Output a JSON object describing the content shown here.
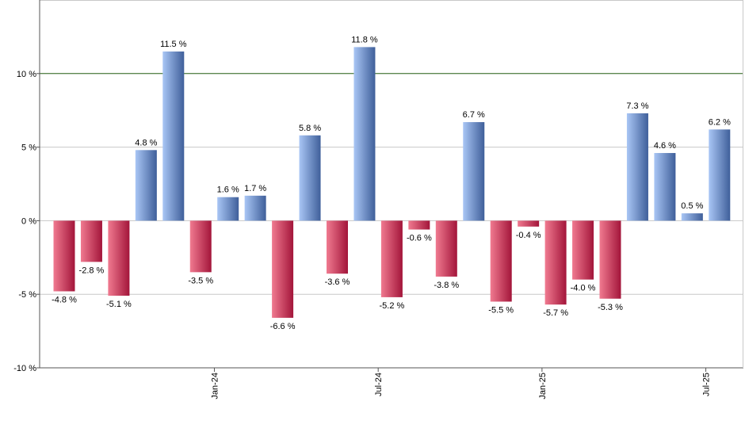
{
  "chart_data": {
    "type": "bar",
    "title": "",
    "xlabel": "",
    "ylabel": "",
    "ylim": [
      -10,
      15
    ],
    "unit_suffix": " %",
    "reference_line": 10,
    "grid": true,
    "y_ticks": [
      {
        "value": -10,
        "label": "-10 %"
      },
      {
        "value": -5,
        "label": "-5 %"
      },
      {
        "value": 0,
        "label": "0 %"
      },
      {
        "value": 5,
        "label": "5 %"
      },
      {
        "value": 10,
        "label": "10 %"
      }
    ],
    "x_ticks": [
      {
        "index": 5.5,
        "label": "Jan-24"
      },
      {
        "index": 11.5,
        "label": "Jul-24"
      },
      {
        "index": 17.5,
        "label": "Jan-25"
      },
      {
        "index": 23.5,
        "label": "Jul-25"
      }
    ],
    "values": [
      -4.8,
      -2.8,
      -5.1,
      4.8,
      11.5,
      -3.5,
      1.6,
      1.7,
      -6.6,
      5.8,
      -3.6,
      11.8,
      -5.2,
      -0.6,
      -3.8,
      6.7,
      -5.5,
      -0.4,
      -5.7,
      -4.0,
      -5.3,
      7.3,
      4.6,
      0.5,
      6.2
    ],
    "labels": [
      "-4.8 %",
      "-2.8 %",
      "-5.1 %",
      "4.8 %",
      "11.5 %",
      "-3.5 %",
      "1.6 %",
      "1.7 %",
      "-6.6 %",
      "5.8 %",
      "-3.6 %",
      "11.8 %",
      "-5.2 %",
      "-0.6 %",
      "-3.8 %",
      "6.7 %",
      "-5.5 %",
      "-0.4 %",
      "-5.7 %",
      "-4.0 %",
      "-5.3 %",
      "7.3 %",
      "4.6 %",
      "0.5 %",
      "6.2 %"
    ],
    "colors": {
      "positive_light": "#a9c6f5",
      "positive_dark": "#3f5f9a",
      "negative_light": "#f07a90",
      "negative_dark": "#a3153a",
      "reference_line": "#2e6b1e",
      "grid": "#c8c8c8",
      "axis": "#555555"
    }
  }
}
